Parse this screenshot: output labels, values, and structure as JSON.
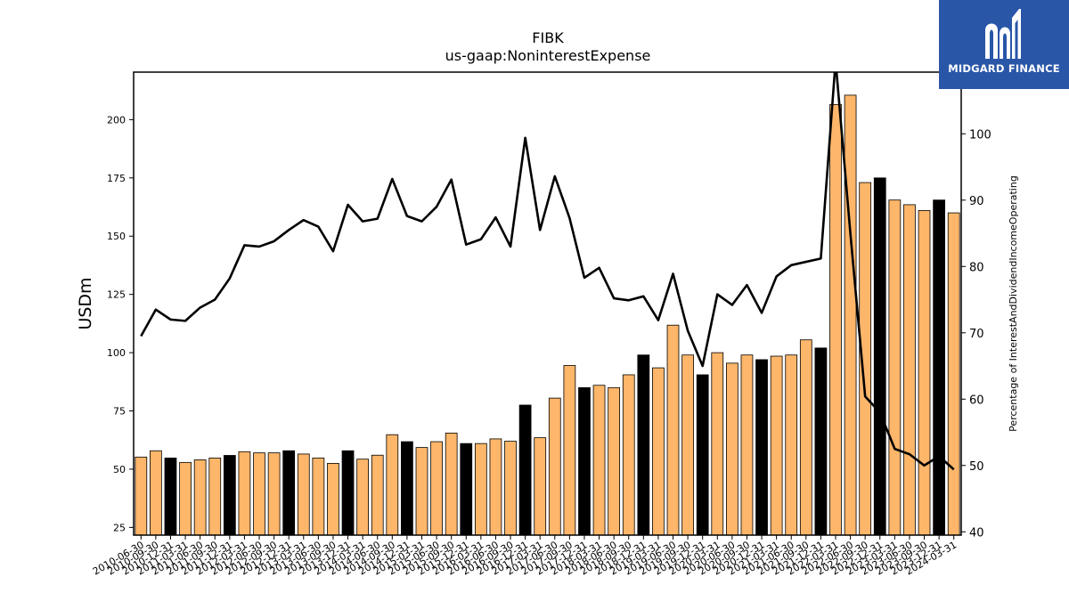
{
  "chart_data": {
    "type": "bar",
    "title": "FIBK",
    "subtitle": "us-gaap:NoninterestExpense",
    "ylabel": "USDm",
    "y2label": "Percentage of InterestAndDividendIncomeOperating",
    "ylim": [
      21.7,
      220.4
    ],
    "y2lim": [
      39.5,
      109.3
    ],
    "yticks": [
      25,
      50,
      75,
      100,
      125,
      150,
      175,
      200
    ],
    "y2ticks": [
      40,
      50,
      60,
      70,
      80,
      90,
      100
    ],
    "categories": [
      "2010-06-30",
      "2010-09-30",
      "2010-12-31",
      "2011-03-31",
      "2011-06-30",
      "2011-09-30",
      "2011-12-31",
      "2012-03-31",
      "2012-06-30",
      "2012-09-30",
      "2012-12-31",
      "2013-03-31",
      "2013-06-30",
      "2013-09-30",
      "2013-12-31",
      "2014-03-31",
      "2014-06-30",
      "2014-09-30",
      "2014-12-31",
      "2015-03-31",
      "2015-06-30",
      "2015-09-30",
      "2015-12-31",
      "2016-03-31",
      "2016-06-30",
      "2016-09-30",
      "2016-12-31",
      "2017-03-31",
      "2017-06-30",
      "2017-09-30",
      "2017-12-31",
      "2018-03-31",
      "2018-06-30",
      "2018-09-30",
      "2018-12-31",
      "2019-03-31",
      "2019-06-30",
      "2019-09-30",
      "2019-12-31",
      "2020-03-31",
      "2020-06-30",
      "2020-09-30",
      "2020-12-31",
      "2021-03-31",
      "2021-06-30",
      "2021-09-30",
      "2021-12-31",
      "2022-03-31",
      "2022-06-30",
      "2022-09-30",
      "2022-12-31",
      "2023-03-31",
      "2023-06-30",
      "2023-09-30",
      "2023-12-31",
      "2024-03-31"
    ],
    "series": [
      {
        "type": "bar",
        "values": [
          55.2,
          57.9,
          54.8,
          52.9,
          54.0,
          54.8,
          55.9,
          57.5,
          57.0,
          57.0,
          57.9,
          56.5,
          54.8,
          52.5,
          57.9,
          54.3,
          56.0,
          64.8,
          61.8,
          59.3,
          61.8,
          65.5,
          61.0,
          61.0,
          63.0,
          62.0,
          77.5,
          63.5,
          80.5,
          94.5,
          85.0,
          86.0,
          85.0,
          90.5,
          99.0,
          93.5,
          111.8,
          99.0,
          90.5,
          100.0,
          95.5,
          99.0,
          97.0,
          98.5,
          99.0,
          105.5,
          102.0,
          206.5,
          210.5,
          173.0,
          175.0,
          165.5,
          163.5,
          161.0,
          165.5,
          160.0
        ],
        "highlight": [
          false,
          false,
          true,
          false,
          false,
          false,
          true,
          false,
          false,
          false,
          true,
          false,
          false,
          false,
          true,
          false,
          false,
          false,
          true,
          false,
          false,
          false,
          true,
          false,
          false,
          false,
          true,
          false,
          false,
          false,
          true,
          false,
          false,
          false,
          true,
          false,
          false,
          false,
          true,
          false,
          false,
          false,
          true,
          false,
          false,
          false,
          true,
          false,
          false,
          false,
          true,
          false,
          false,
          false,
          true,
          false
        ]
      },
      {
        "type": "line",
        "axis": "right",
        "values": [
          69.5,
          73.5,
          72.0,
          71.8,
          73.8,
          75.0,
          78.2,
          83.2,
          83.0,
          83.8,
          85.5,
          87.0,
          86.0,
          82.3,
          89.3,
          86.8,
          87.2,
          93.2,
          87.6,
          86.8,
          89.0,
          93.1,
          83.3,
          84.1,
          87.4,
          83.0,
          99.4,
          85.5,
          93.6,
          87.3,
          78.3,
          79.8,
          75.2,
          74.9,
          75.5,
          71.9,
          78.9,
          70.3,
          65.0,
          75.8,
          74.2,
          77.2,
          73.0,
          78.5,
          80.2,
          80.7,
          81.2,
          111.0,
          85.0,
          60.4,
          58.0,
          52.5,
          51.7,
          50.0,
          51.4,
          49.4
        ]
      }
    ],
    "colors": {
      "bar": "#fdb66a",
      "bar_highlight": "#000000",
      "line": "#000000",
      "logo_bg": "#2a56a8"
    }
  },
  "logo": {
    "text": "MIDGARD FINANCE",
    "icon": "midgard-logo-icon"
  }
}
